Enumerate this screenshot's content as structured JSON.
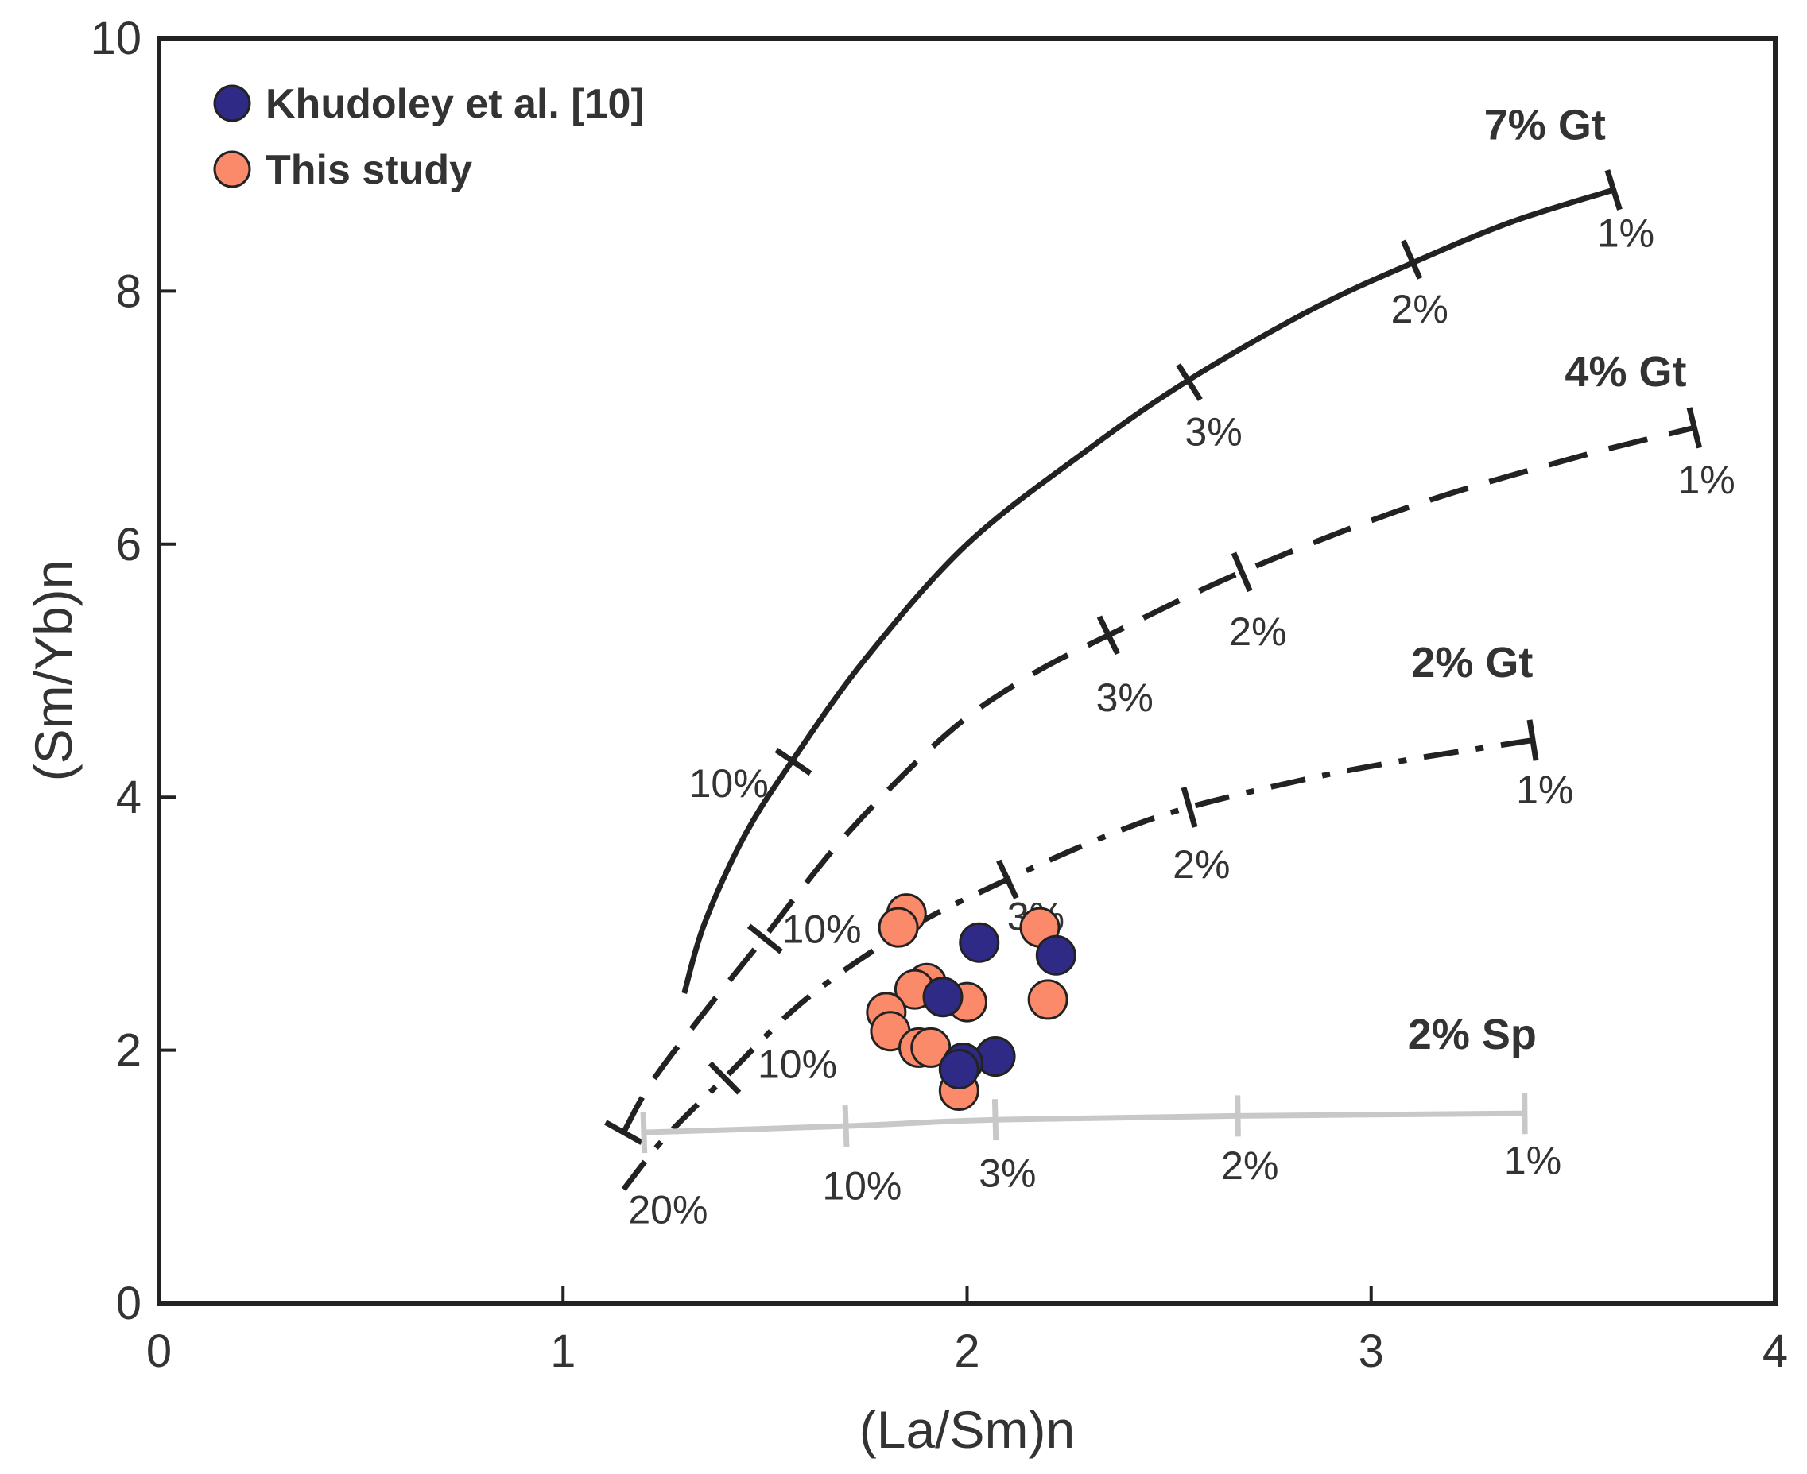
{
  "chart_data": {
    "type": "scatter",
    "xlabel": "(La/Sm)n",
    "ylabel": "(Sm/Yb)n",
    "xlim": [
      0,
      4
    ],
    "ylim": [
      0,
      10
    ],
    "xticks": [
      "0",
      "1",
      "2",
      "3",
      "4"
    ],
    "yticks": [
      "0",
      "2",
      "4",
      "6",
      "8",
      "10"
    ],
    "grid": false,
    "legend_position": "top-left",
    "colors": {
      "khudoley": "#2e2a86",
      "this_study": "#fb8a6a",
      "curve": "#222222",
      "spinel": "#c8c8c8"
    },
    "series": [
      {
        "name": "Khudoley et al. [10]",
        "color": "#2e2a86",
        "x": [
          2.03,
          2.22,
          1.94,
          2.07,
          1.99,
          1.98
        ],
        "y": [
          2.85,
          2.75,
          2.42,
          1.95,
          1.9,
          1.85
        ]
      },
      {
        "name": "This study",
        "color": "#fb8a6a",
        "x": [
          1.85,
          1.83,
          2.18,
          1.9,
          1.87,
          2.0,
          2.2,
          1.8,
          1.81,
          1.88,
          1.91,
          1.98
        ],
        "y": [
          3.08,
          2.97,
          2.97,
          2.53,
          2.48,
          2.38,
          2.4,
          2.3,
          2.15,
          2.02,
          2.02,
          1.68
        ]
      }
    ],
    "melting_curves": [
      {
        "name": "7% Gt",
        "style": "solid",
        "color": "#222222",
        "x": [
          1.3,
          1.35,
          1.45,
          1.57,
          1.75,
          2.0,
          2.3,
          2.55,
          2.85,
          3.1,
          3.35,
          3.6
        ],
        "y": [
          2.45,
          3.0,
          3.7,
          4.3,
          5.1,
          6.0,
          6.75,
          7.3,
          7.85,
          8.22,
          8.55,
          8.8
        ],
        "ticks": [
          {
            "label": "10%",
            "x": 1.57,
            "y": 4.28
          },
          {
            "label": "3%",
            "x": 2.55,
            "y": 7.28
          },
          {
            "label": "2%",
            "x": 3.1,
            "y": 8.25
          },
          {
            "label": "1%",
            "x": 3.6,
            "y": 8.8
          }
        ]
      },
      {
        "name": "4% Gt",
        "style": "dashed",
        "color": "#222222",
        "x": [
          1.15,
          1.22,
          1.35,
          1.5,
          1.7,
          1.95,
          2.15,
          2.35,
          2.68,
          3.1,
          3.5,
          3.8
        ],
        "y": [
          1.35,
          1.75,
          2.3,
          2.9,
          3.7,
          4.5,
          4.95,
          5.28,
          5.78,
          6.3,
          6.68,
          6.92
        ],
        "ticks": [
          {
            "label": "20%",
            "x": 1.15,
            "y": 1.35
          },
          {
            "label": "10%",
            "x": 1.5,
            "y": 2.88
          },
          {
            "label": "3%",
            "x": 2.35,
            "y": 5.28
          },
          {
            "label": "2%",
            "x": 2.68,
            "y": 5.78
          },
          {
            "label": "1%",
            "x": 3.8,
            "y": 6.92
          }
        ]
      },
      {
        "name": "2% Gt",
        "style": "dashdot",
        "color": "#222222",
        "x": [
          1.15,
          1.25,
          1.4,
          1.6,
          1.85,
          2.1,
          2.35,
          2.55,
          2.85,
          3.1,
          3.4
        ],
        "y": [
          0.9,
          1.3,
          1.78,
          2.4,
          2.95,
          3.35,
          3.7,
          3.92,
          4.15,
          4.3,
          4.45
        ],
        "ticks": [
          {
            "label": "10%",
            "x": 1.4,
            "y": 1.78
          },
          {
            "label": "3%",
            "x": 2.1,
            "y": 3.35
          },
          {
            "label": "2%",
            "x": 2.55,
            "y": 3.92
          },
          {
            "label": "1%",
            "x": 3.4,
            "y": 4.45
          }
        ]
      },
      {
        "name": "2% Sp",
        "style": "solid",
        "color": "#c8c8c8",
        "x": [
          1.2,
          1.7,
          2.07,
          2.67,
          3.38
        ],
        "y": [
          1.35,
          1.4,
          1.45,
          1.48,
          1.5
        ],
        "ticks": [
          {
            "label": "20%",
            "x": 1.2,
            "y": 1.35
          },
          {
            "label": "10%",
            "x": 1.7,
            "y": 1.4
          },
          {
            "label": "3%",
            "x": 2.07,
            "y": 1.45
          },
          {
            "label": "2%",
            "x": 2.67,
            "y": 1.48
          },
          {
            "label": "1%",
            "x": 3.38,
            "y": 1.5
          }
        ]
      }
    ],
    "annotations": [
      {
        "id": "gt7-1",
        "text": "1%",
        "x": 3.63,
        "y": 8.35
      },
      {
        "id": "gt7-2",
        "text": "2%",
        "x": 3.12,
        "y": 7.75
      },
      {
        "id": "gt7-3",
        "text": "3%",
        "x": 2.61,
        "y": 6.78
      },
      {
        "id": "gt7-10",
        "text": "10%",
        "x": 1.41,
        "y": 4.0
      },
      {
        "id": "gt4-1",
        "text": "1%",
        "x": 3.83,
        "y": 6.4
      },
      {
        "id": "gt4-2",
        "text": "2%",
        "x": 2.72,
        "y": 5.2
      },
      {
        "id": "gt4-3",
        "text": "3%",
        "x": 2.39,
        "y": 4.68
      },
      {
        "id": "gt4-10",
        "text": "10%",
        "x": 1.64,
        "y": 2.85
      },
      {
        "id": "gt4-20",
        "text": "20%",
        "x": 1.26,
        "y": 0.63
      },
      {
        "id": "gt2-1",
        "text": "1%",
        "x": 3.43,
        "y": 3.95
      },
      {
        "id": "gt2-2",
        "text": "2%",
        "x": 2.58,
        "y": 3.36
      },
      {
        "id": "gt2-3",
        "text": "3%",
        "x": 2.17,
        "y": 2.95
      },
      {
        "id": "gt2-10",
        "text": "10%",
        "x": 1.58,
        "y": 1.78
      },
      {
        "id": "sp-1",
        "text": "1%",
        "x": 3.4,
        "y": 1.02
      },
      {
        "id": "sp-2",
        "text": "2%",
        "x": 2.7,
        "y": 0.98
      },
      {
        "id": "sp-3",
        "text": "3%",
        "x": 2.1,
        "y": 0.92
      },
      {
        "id": "sp-10",
        "text": "10%",
        "x": 1.74,
        "y": 0.82
      },
      {
        "id": "name-7gt",
        "text": "7% Gt",
        "x": 3.43,
        "y": 9.2
      },
      {
        "id": "name-4gt",
        "text": "4% Gt",
        "x": 3.63,
        "y": 7.25
      },
      {
        "id": "name-2gt",
        "text": "2% Gt",
        "x": 3.25,
        "y": 4.95
      },
      {
        "id": "name-2sp",
        "text": "2% Sp",
        "x": 3.25,
        "y": 2.01
      }
    ]
  }
}
